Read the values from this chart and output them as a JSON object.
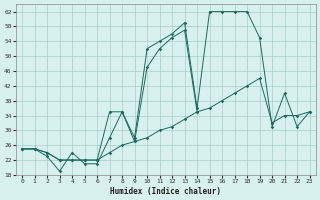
{
  "xlabel": "Humidex (Indice chaleur)",
  "x": [
    0,
    1,
    2,
    3,
    4,
    5,
    6,
    7,
    8,
    9,
    10,
    11,
    12,
    13,
    14,
    15,
    16,
    17,
    18,
    19,
    20,
    21,
    22,
    23
  ],
  "series1": [
    25,
    25,
    23,
    19,
    24,
    21,
    21,
    28,
    35,
    28,
    52,
    54,
    56,
    59,
    36,
    62,
    62,
    62,
    62,
    55,
    31,
    40,
    31,
    35
  ],
  "series2": [
    25,
    25,
    24,
    22,
    22,
    22,
    22,
    35,
    35,
    27,
    47,
    52,
    55,
    57,
    35,
    null,
    null,
    null,
    null,
    null,
    null,
    null,
    null,
    null
  ],
  "series3": [
    25,
    25,
    24,
    22,
    22,
    22,
    22,
    24,
    26,
    27,
    28,
    30,
    31,
    33,
    35,
    36,
    38,
    40,
    42,
    44,
    32,
    34,
    34,
    35
  ],
  "line_color": "#1a6b5e",
  "bg_color": "#d8f0ee",
  "grid_color": "#aacfca",
  "ylim": [
    18,
    64
  ],
  "xlim": [
    -0.5,
    23.5
  ],
  "yticks": [
    18,
    22,
    26,
    30,
    34,
    38,
    42,
    46,
    50,
    54,
    58,
    62
  ],
  "xticks": [
    0,
    1,
    2,
    3,
    4,
    5,
    6,
    7,
    8,
    9,
    10,
    11,
    12,
    13,
    14,
    15,
    16,
    17,
    18,
    19,
    20,
    21,
    22,
    23
  ]
}
